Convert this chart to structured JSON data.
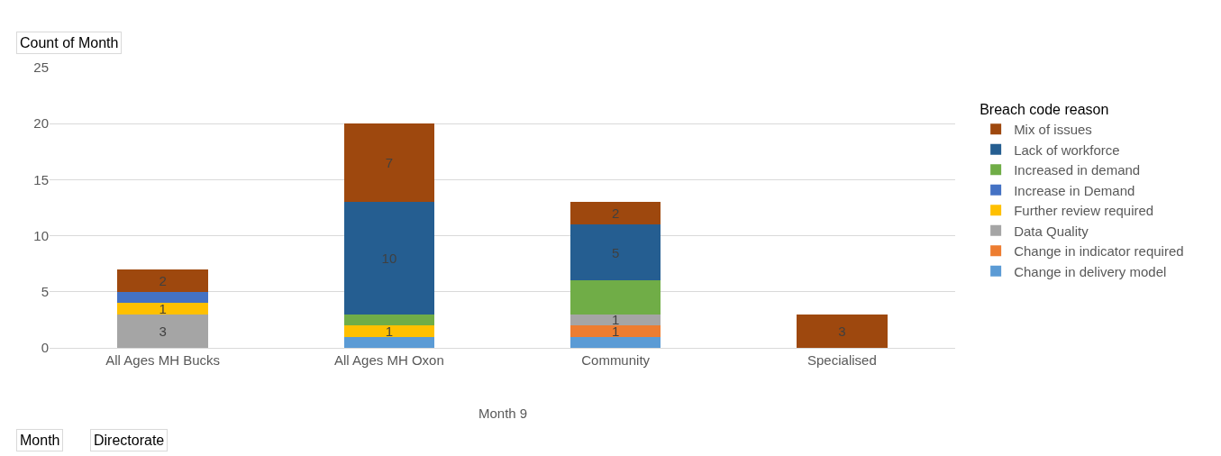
{
  "chart_data": {
    "type": "bar",
    "stacked": true,
    "ylabel": "Count of Month",
    "xlabel": "Month 9",
    "legend_title": "Breach code reason",
    "legend": "right",
    "grid": "y",
    "ylim": [
      0,
      25
    ],
    "yticks": [
      0,
      5,
      10,
      15,
      20,
      25
    ],
    "categories": [
      "All Ages MH Bucks",
      "All Ages MH Oxon",
      "Community",
      "Specialised"
    ],
    "series": [
      {
        "name": "Change in delivery model",
        "color": "#5b9bd5",
        "values": [
          null,
          1,
          1,
          null
        ],
        "value_labels": [
          null,
          null,
          null,
          null
        ]
      },
      {
        "name": "Change in indicator required",
        "color": "#ed7d31",
        "values": [
          null,
          null,
          1,
          null
        ],
        "value_labels": [
          null,
          null,
          "1",
          null
        ]
      },
      {
        "name": "Data Quality",
        "color": "#a5a5a5",
        "values": [
          3,
          null,
          1,
          null
        ],
        "value_labels": [
          "3",
          null,
          "1",
          null
        ]
      },
      {
        "name": "Further review required",
        "color": "#ffc000",
        "values": [
          1,
          1,
          null,
          null
        ],
        "value_labels": [
          "1",
          "1",
          null,
          null
        ]
      },
      {
        "name": "Increase in Demand",
        "color": "#4472c4",
        "values": [
          1,
          null,
          null,
          null
        ],
        "value_labels": [
          null,
          null,
          null,
          null
        ]
      },
      {
        "name": "Increased in demand",
        "color": "#70ad47",
        "values": [
          null,
          1,
          3,
          null
        ],
        "value_labels": [
          null,
          null,
          null,
          null
        ]
      },
      {
        "name": "Lack of workforce",
        "color": "#255e91",
        "values": [
          null,
          10,
          5,
          null
        ],
        "value_labels": [
          null,
          "10",
          "5",
          null
        ]
      },
      {
        "name": "Mix of issues",
        "color": "#9e480e",
        "values": [
          2,
          7,
          2,
          3
        ],
        "value_labels": [
          "2",
          "7",
          "2",
          "3"
        ]
      }
    ],
    "annotations": [
      "Month",
      "Directorate"
    ]
  }
}
